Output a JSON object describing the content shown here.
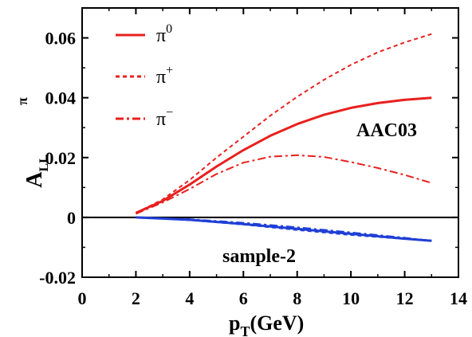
{
  "chart_data": {
    "type": "line",
    "xlabel": {
      "main": "p",
      "sub": "T",
      "rest": "(GeV)"
    },
    "ylabel": {
      "main": "A",
      "sub": "LL",
      "sup": "π"
    },
    "xlim": [
      0,
      14
    ],
    "ylim": [
      -0.02,
      0.07
    ],
    "xticks": [
      "0",
      "2",
      "4",
      "6",
      "8",
      "10",
      "12",
      "14"
    ],
    "yticks": [
      "-0.02",
      "0",
      "0.02",
      "0.04",
      "0.06"
    ],
    "zero_line": true,
    "legend_position": "top-left",
    "annotations": [
      "AAC03",
      "sample-2"
    ],
    "series": [
      {
        "name": "π⁰",
        "label_base": "π",
        "label_sup": "0",
        "color": "#e8201e",
        "style": "solid",
        "x": [
          2,
          3,
          4,
          5,
          6,
          7,
          8,
          9,
          10,
          11,
          12,
          13
        ],
        "y": [
          0.0015,
          0.0055,
          0.011,
          0.017,
          0.0225,
          0.0273,
          0.0312,
          0.0343,
          0.0366,
          0.0382,
          0.0393,
          0.04
        ]
      },
      {
        "name": "π⁺",
        "label_base": "π",
        "label_sup": "+",
        "color": "#e8201e",
        "style": "dotted",
        "x": [
          2,
          3,
          4,
          5,
          6,
          7,
          8,
          9,
          10,
          11,
          12,
          13
        ],
        "y": [
          0.0015,
          0.006,
          0.0125,
          0.02,
          0.027,
          0.034,
          0.0403,
          0.046,
          0.051,
          0.0552,
          0.0585,
          0.0613
        ]
      },
      {
        "name": "π⁻",
        "label_base": "π",
        "label_sup": "−",
        "color": "#e8201e",
        "style": "dashdot",
        "x": [
          2,
          3,
          4,
          5,
          6,
          7,
          8,
          9,
          10,
          11,
          12,
          13
        ],
        "y": [
          0.0012,
          0.005,
          0.0095,
          0.0145,
          0.0183,
          0.0203,
          0.0208,
          0.0202,
          0.0185,
          0.0165,
          0.0142,
          0.0115
        ]
      },
      {
        "name": "sample-2 π⁰",
        "color": "#1f3fd6",
        "style": "solid",
        "x": [
          2,
          4,
          6,
          8,
          10,
          12,
          13
        ],
        "y": [
          0.0,
          -0.0008,
          -0.0022,
          -0.0038,
          -0.0055,
          -0.0071,
          -0.0078
        ]
      },
      {
        "name": "sample-2 π⁺",
        "color": "#1f3fd6",
        "style": "dotted",
        "x": [
          2,
          4,
          6,
          8,
          10,
          12,
          13
        ],
        "y": [
          0.0,
          -0.0009,
          -0.0024,
          -0.0042,
          -0.0059,
          -0.0072,
          -0.0077
        ]
      },
      {
        "name": "sample-2 π⁻",
        "color": "#1f3fd6",
        "style": "dashdot",
        "x": [
          2,
          4,
          6,
          8,
          10,
          12,
          13
        ],
        "y": [
          0.0,
          -0.0006,
          -0.0018,
          -0.0033,
          -0.005,
          -0.0068,
          -0.0078
        ]
      }
    ]
  }
}
